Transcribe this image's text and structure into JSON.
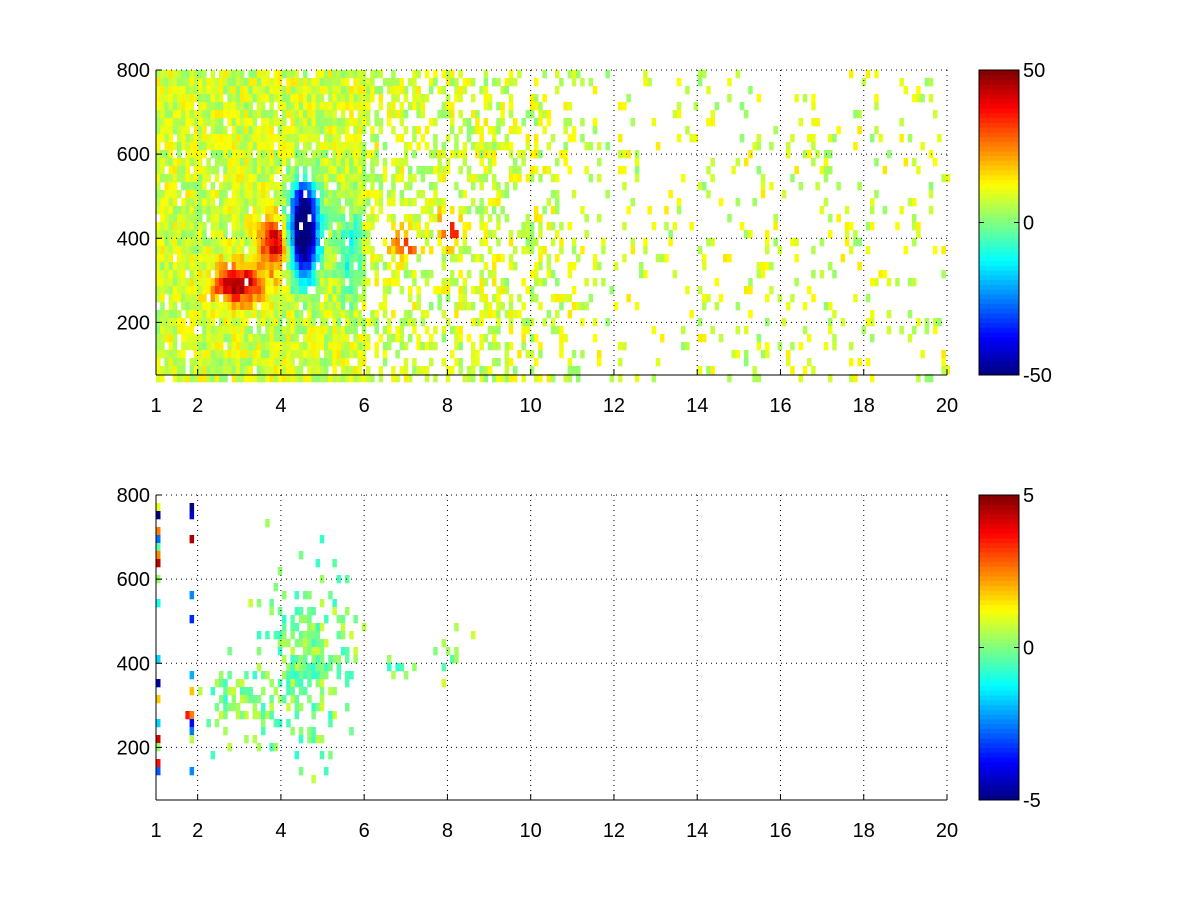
{
  "chart_data": [
    {
      "type": "heatmap",
      "title": "",
      "xlabel": "",
      "ylabel": "",
      "xlim": [
        1,
        20
      ],
      "ylim": [
        75,
        800
      ],
      "xticks": [
        1,
        2,
        4,
        6,
        8,
        10,
        12,
        14,
        16,
        18,
        20
      ],
      "yticks": [
        200,
        400,
        600,
        800
      ],
      "grid": true,
      "colormap": "jet",
      "colorbar": {
        "range": [
          -50,
          50
        ],
        "ticks": [
          -50,
          0,
          50
        ],
        "placement": "right"
      },
      "features": [
        {
          "description": "strong positive (red) band",
          "x": [
            2.2,
            3.4
          ],
          "y": [
            260,
            340
          ],
          "value": 40
        },
        {
          "description": "positive (red/orange) ridge",
          "x": [
            3.5,
            4.3
          ],
          "y": [
            340,
            470
          ],
          "value": 35
        },
        {
          "description": "strong negative (blue) band",
          "x": [
            4.0,
            5.0
          ],
          "y": [
            320,
            560
          ],
          "value": -40
        },
        {
          "description": "positive patch",
          "x": [
            6.6,
            7.2
          ],
          "y": [
            370,
            420
          ],
          "value": 25
        },
        {
          "description": "positive patch",
          "x": [
            7.8,
            8.4
          ],
          "y": [
            400,
            470
          ],
          "value": 25
        }
      ]
    },
    {
      "type": "heatmap",
      "title": "",
      "xlabel": "",
      "ylabel": "",
      "xlim": [
        1,
        20
      ],
      "ylim": [
        75,
        800
      ],
      "xticks": [
        1,
        2,
        4,
        6,
        8,
        10,
        12,
        14,
        16,
        18,
        20
      ],
      "yticks": [
        200,
        400,
        600,
        800
      ],
      "grid": true,
      "colormap": "jet",
      "colorbar": {
        "range": [
          -5,
          5
        ],
        "ticks": [
          -5,
          0,
          5
        ],
        "placement": "right"
      },
      "features": [
        {
          "description": "near-zero scatter cluster",
          "x": [
            2.0,
            5.8
          ],
          "y": [
            230,
            780
          ],
          "value": 0
        },
        {
          "description": "near-zero patch",
          "x": [
            6.5,
            7.3
          ],
          "y": [
            360,
            430
          ],
          "value": 0
        },
        {
          "description": "near-zero patch",
          "x": [
            7.7,
            8.5
          ],
          "y": [
            380,
            480
          ],
          "value": 0
        }
      ]
    }
  ]
}
